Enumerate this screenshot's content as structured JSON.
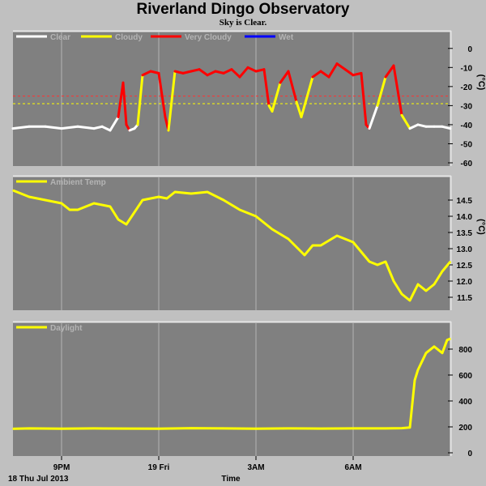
{
  "title": "Riverland Dingo Observatory",
  "subtitle": "Sky is Clear.",
  "date_label": "18 Thu Jul 2013",
  "colors": {
    "background": "#c0c0c0",
    "plot_bg": "#808080",
    "grid": "#b4b4b4"
  },
  "chart_data": [
    {
      "type": "line",
      "legend_position": "top-left",
      "grid": true,
      "ylabel": "(°C)",
      "ylim": [
        -60,
        5
      ],
      "yticks": [
        0,
        -10,
        -20,
        -30,
        -40,
        -50,
        -60
      ],
      "reference_lines": [
        {
          "y": -25,
          "color": "#ff3030",
          "style": "dashed"
        },
        {
          "y": -29,
          "color": "#ffff00",
          "style": "dashed"
        }
      ],
      "series": [
        {
          "name": "Clear",
          "color": "#ffffff"
        },
        {
          "name": "Cloudy",
          "color": "#ffff00"
        },
        {
          "name": "Very Cloudy",
          "color": "#ff0000"
        },
        {
          "name": "Wet",
          "color": "#0000ff"
        }
      ],
      "x": [
        19.5,
        20.0,
        20.5,
        21.0,
        21.5,
        22.0,
        22.25,
        22.5,
        22.75,
        22.9,
        23.0,
        23.1,
        23.25,
        23.35,
        23.5,
        23.75,
        24.0,
        24.2,
        24.3,
        24.5,
        24.75,
        25.0,
        25.25,
        25.5,
        25.75,
        26.0,
        26.25,
        26.5,
        26.75,
        27.0,
        27.25,
        27.4,
        27.5,
        27.75,
        28.0,
        28.25,
        28.4,
        28.5,
        28.75,
        29.0,
        29.25,
        29.5,
        29.75,
        30.0,
        30.25,
        30.4,
        30.5,
        30.75,
        31.0,
        31.25,
        31.5,
        31.75,
        32.0,
        32.25,
        32.5,
        32.75,
        33.0
      ],
      "values": [
        -42,
        -41,
        -41,
        -42,
        -41,
        -42,
        -41,
        -43,
        -36,
        -18,
        -40,
        -43,
        -42,
        -40,
        -14,
        -12,
        -13,
        -36,
        -43,
        -12,
        -13,
        -12,
        -11,
        -14,
        -12,
        -13,
        -11,
        -15,
        -10,
        -12,
        -11,
        -30,
        -33,
        -18,
        -12,
        -28,
        -36,
        -30,
        -15,
        -12,
        -15,
        -8,
        -11,
        -14,
        -13,
        -40,
        -42,
        -30,
        -15,
        -9,
        -35,
        -42,
        -40,
        -41,
        -41,
        -41,
        -42
      ],
      "status": [
        "Clear",
        "Clear",
        "Clear",
        "Clear",
        "Clear",
        "Clear",
        "Clear",
        "Clear",
        "Very Cloudy",
        "Very Cloudy",
        "Very Cloudy",
        "Clear",
        "Clear",
        "Cloudy",
        "Very Cloudy",
        "Very Cloudy",
        "Very Cloudy",
        "Very Cloudy",
        "Cloudy",
        "Very Cloudy",
        "Very Cloudy",
        "Very Cloudy",
        "Very Cloudy",
        "Very Cloudy",
        "Very Cloudy",
        "Very Cloudy",
        "Very Cloudy",
        "Very Cloudy",
        "Very Cloudy",
        "Very Cloudy",
        "Very Cloudy",
        "Cloudy",
        "Cloudy",
        "Very Cloudy",
        "Very Cloudy",
        "Cloudy",
        "Cloudy",
        "Cloudy",
        "Very Cloudy",
        "Very Cloudy",
        "Very Cloudy",
        "Very Cloudy",
        "Very Cloudy",
        "Very Cloudy",
        "Very Cloudy",
        "Very Cloudy",
        "Clear",
        "Cloudy",
        "Very Cloudy",
        "Very Cloudy",
        "Cloudy",
        "Clear",
        "Clear",
        "Clear",
        "Clear",
        "Clear",
        "Clear"
      ]
    },
    {
      "type": "line",
      "legend_position": "top-left",
      "grid": true,
      "ylabel": "(°C)",
      "ylim": [
        11.2,
        15.0
      ],
      "yticks": [
        14.5,
        14.0,
        13.5,
        13.0,
        12.5,
        12.0,
        11.5
      ],
      "series": [
        {
          "name": "Ambient Temp",
          "color": "#ffff00",
          "x": [
            19.5,
            19.75,
            20.0,
            20.5,
            21.0,
            21.25,
            21.5,
            22.0,
            22.5,
            22.75,
            23.0,
            23.5,
            24.0,
            24.25,
            24.5,
            25.0,
            25.5,
            26.0,
            26.5,
            27.0,
            27.25,
            27.5,
            28.0,
            28.5,
            28.75,
            29.0,
            29.5,
            30.0,
            30.25,
            30.5,
            30.75,
            31.0,
            31.25,
            31.5,
            31.75,
            32.0,
            32.25,
            32.5,
            32.75,
            33.0
          ],
          "values": [
            14.8,
            14.7,
            14.6,
            14.5,
            14.4,
            14.2,
            14.2,
            14.4,
            14.3,
            13.9,
            13.75,
            14.5,
            14.6,
            14.55,
            14.75,
            14.7,
            14.75,
            14.5,
            14.2,
            14.0,
            13.8,
            13.6,
            13.3,
            12.8,
            13.1,
            13.1,
            13.4,
            13.2,
            12.9,
            12.6,
            12.5,
            12.6,
            12.0,
            11.6,
            11.4,
            11.9,
            11.7,
            11.9,
            12.3,
            12.6
          ]
        }
      ]
    },
    {
      "type": "line",
      "legend_position": "top-left",
      "grid": true,
      "ylim": [
        0,
        950
      ],
      "yticks": [
        800,
        600,
        400,
        200,
        0
      ],
      "series": [
        {
          "name": "Daylight",
          "color": "#ffff00",
          "x": [
            19.5,
            20.0,
            21.0,
            22.0,
            23.0,
            24.0,
            25.0,
            26.0,
            27.0,
            28.0,
            29.0,
            30.0,
            31.0,
            31.5,
            31.75,
            31.9,
            32.0,
            32.25,
            32.5,
            32.75,
            32.9,
            33.0
          ],
          "values": [
            185,
            188,
            186,
            188,
            187,
            186,
            190,
            188,
            186,
            188,
            187,
            188,
            188,
            190,
            195,
            560,
            640,
            770,
            820,
            770,
            870,
            880
          ]
        }
      ]
    }
  ],
  "x_axis": {
    "label": "Time",
    "min": 19.5,
    "max": 33.0,
    "ticks": [
      {
        "value": 21,
        "label": "9PM"
      },
      {
        "value": 24,
        "label": "19 Fri"
      },
      {
        "value": 27,
        "label": "3AM"
      },
      {
        "value": 30,
        "label": "6AM"
      }
    ]
  }
}
